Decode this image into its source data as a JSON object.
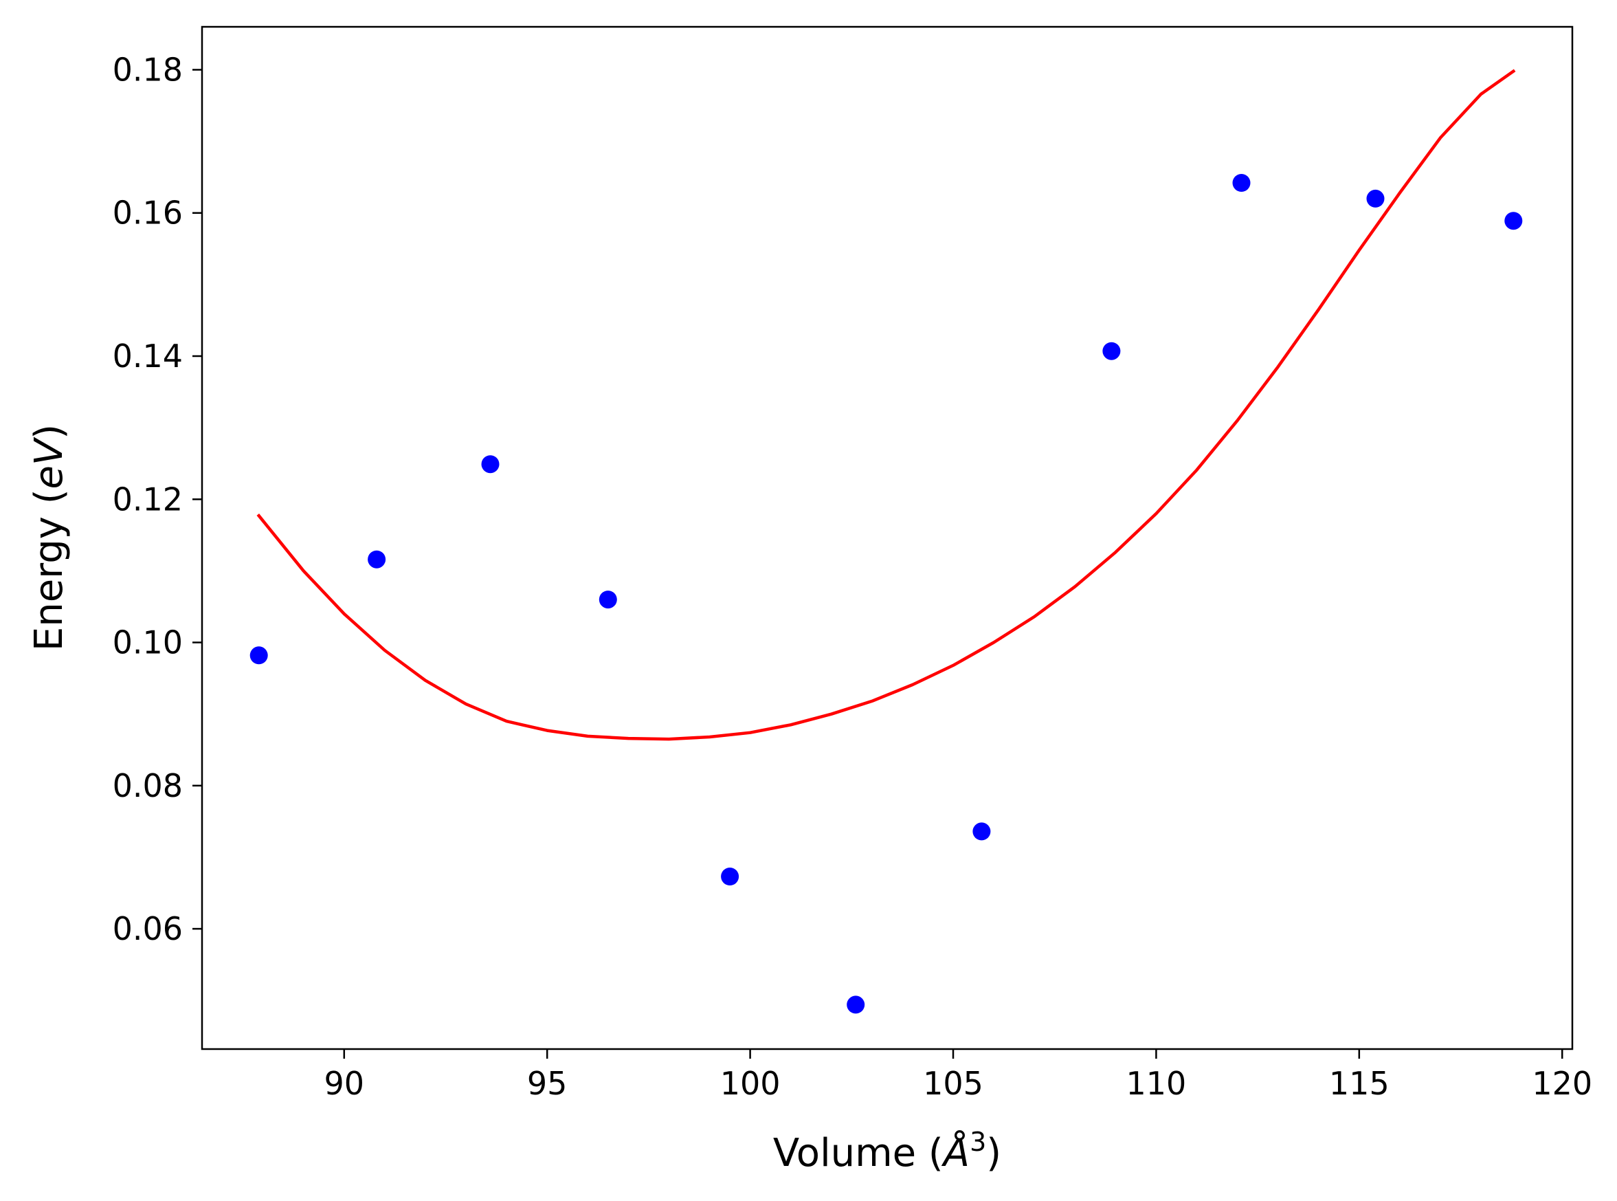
{
  "chart_data": {
    "type": "scatter",
    "title": "",
    "xlabel": "Volume ($Å^3$)",
    "xlabel_parts": {
      "pre": "Volume (",
      "sym": "Å",
      "sup": "3",
      "post": ")"
    },
    "ylabel": "Energy ($eV$)",
    "ylabel_parts": {
      "pre": "Energy (",
      "sym": "eV",
      "post": ")"
    },
    "xlim": [
      86.5,
      120.25
    ],
    "ylim": [
      0.0432,
      0.186
    ],
    "xticks": [
      90,
      95,
      100,
      105,
      110,
      115,
      120
    ],
    "xtick_labels": [
      "90",
      "95",
      "100",
      "105",
      "110",
      "115",
      "120"
    ],
    "yticks": [
      0.06,
      0.08,
      0.1,
      0.12,
      0.14,
      0.16,
      0.18
    ],
    "ytick_labels": [
      "0.06",
      "0.08",
      "0.10",
      "0.12",
      "0.14",
      "0.16",
      "0.18"
    ],
    "grid": false,
    "series": [
      {
        "type": "scatter",
        "color": "#0000ff",
        "points": [
          [
            87.9,
            0.0982
          ],
          [
            90.8,
            0.1116
          ],
          [
            93.6,
            0.1249
          ],
          [
            96.5,
            0.106
          ],
          [
            99.5,
            0.0673
          ],
          [
            102.6,
            0.0494
          ],
          [
            105.7,
            0.0736
          ],
          [
            108.9,
            0.1407
          ],
          [
            112.1,
            0.1642
          ],
          [
            115.4,
            0.162
          ],
          [
            118.8,
            0.1589
          ]
        ]
      },
      {
        "type": "line",
        "color": "#ff0000",
        "points": [
          [
            87.9,
            0.1177
          ],
          [
            89.0,
            0.11
          ],
          [
            90.0,
            0.104
          ],
          [
            91.0,
            0.0989
          ],
          [
            92.0,
            0.0947
          ],
          [
            93.0,
            0.0914
          ],
          [
            94.0,
            0.089
          ],
          [
            95.0,
            0.0877
          ],
          [
            96.0,
            0.0869
          ],
          [
            97.0,
            0.0866
          ],
          [
            98.0,
            0.0865
          ],
          [
            99.0,
            0.0868
          ],
          [
            100.0,
            0.0874
          ],
          [
            101.0,
            0.0885
          ],
          [
            102.0,
            0.09
          ],
          [
            103.0,
            0.0918
          ],
          [
            104.0,
            0.0941
          ],
          [
            105.0,
            0.0968
          ],
          [
            106.0,
            0.1
          ],
          [
            107.0,
            0.1036
          ],
          [
            108.0,
            0.1078
          ],
          [
            109.0,
            0.1126
          ],
          [
            110.0,
            0.118
          ],
          [
            111.0,
            0.1241
          ],
          [
            112.0,
            0.131
          ],
          [
            113.0,
            0.1385
          ],
          [
            114.0,
            0.1465
          ],
          [
            115.0,
            0.1548
          ],
          [
            116.0,
            0.1628
          ],
          [
            117.0,
            0.1705
          ],
          [
            118.0,
            0.1766
          ],
          [
            118.8,
            0.1798
          ]
        ]
      }
    ]
  }
}
